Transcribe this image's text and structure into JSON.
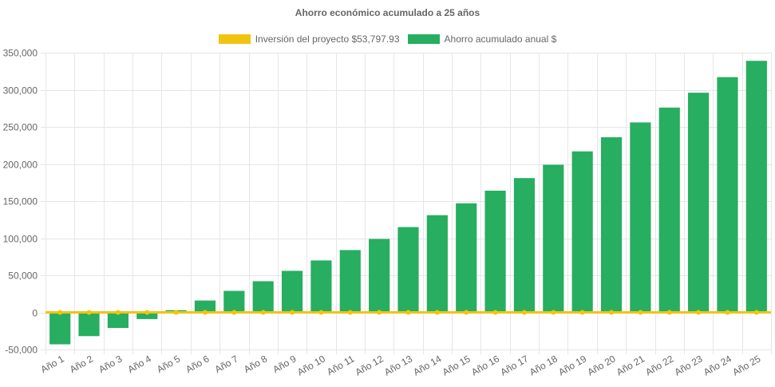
{
  "chart_data": {
    "type": "bar",
    "title": "Ahorro económico acumulado a 25 años",
    "categories": [
      "Año 1",
      "Año 2",
      "Año 3",
      "Año 4",
      "Año 5",
      "Año 6",
      "Año 7",
      "Año 8",
      "Año 9",
      "Año 10",
      "Año 11",
      "Año 12",
      "Año 13",
      "Año 14",
      "Año 15",
      "Año 16",
      "Año 17",
      "Año 18",
      "Año 19",
      "Año 20",
      "Año 21",
      "Año 22",
      "Año 23",
      "Año 24",
      "Año 25"
    ],
    "series": [
      {
        "name": "Inversión del proyecto $53,797.93",
        "type": "line",
        "color": "#f1c40f",
        "values": [
          0,
          0,
          0,
          0,
          0,
          0,
          0,
          0,
          0,
          0,
          0,
          0,
          0,
          0,
          0,
          0,
          0,
          0,
          0,
          0,
          0,
          0,
          0,
          0,
          0
        ]
      },
      {
        "name": "Ahorro acumulado anual $",
        "type": "bar",
        "color": "#27ae60",
        "values": [
          -43000,
          -32000,
          -21000,
          -9000,
          3000,
          16000,
          29000,
          42000,
          56000,
          70000,
          84000,
          99000,
          115000,
          131000,
          147000,
          164000,
          181000,
          199000,
          217000,
          236000,
          256000,
          276000,
          296000,
          317000,
          339000
        ]
      }
    ],
    "ylim": [
      -50000,
      350000
    ],
    "yticks": [
      "350,000",
      "300,000",
      "250,000",
      "200,000",
      "150,000",
      "100,000",
      "50,000",
      "0",
      "-50,000"
    ],
    "ytick_values": [
      350000,
      300000,
      250000,
      200000,
      150000,
      100000,
      50000,
      0,
      -50000
    ],
    "grid": true,
    "legend": "top"
  }
}
